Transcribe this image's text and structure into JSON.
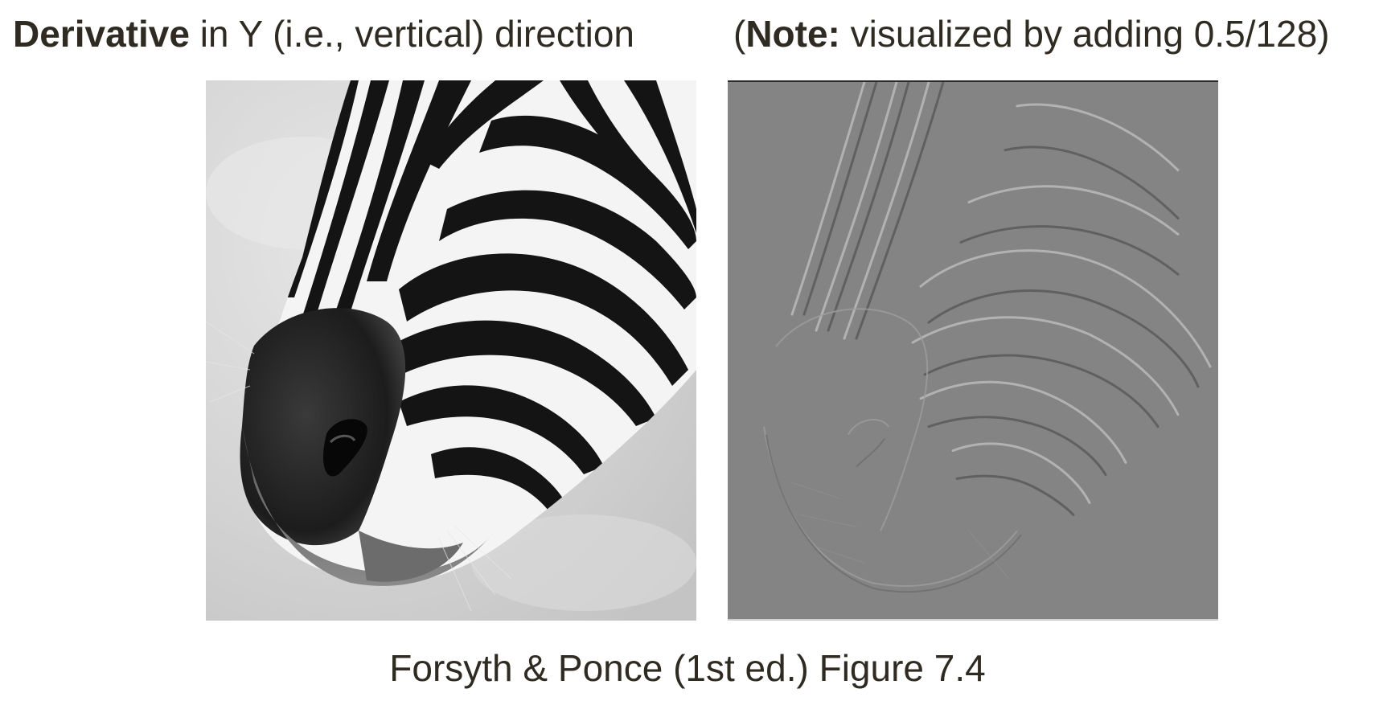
{
  "heading_left": {
    "bold": "Derivative",
    "rest": " in Y (i.e., vertical) direction"
  },
  "heading_right": {
    "open_paren": "(",
    "bold": "Note:",
    "rest": " visualized by adding 0.5/128)"
  },
  "images": {
    "original": "zebra-grayscale-photo",
    "derivative": "zebra-y-derivative-visualization"
  },
  "caption": "Forsyth & Ponce (1st ed.) Figure 7.4",
  "colors": {
    "text": "#2f2b22",
    "derivative_gray": "#848484"
  }
}
